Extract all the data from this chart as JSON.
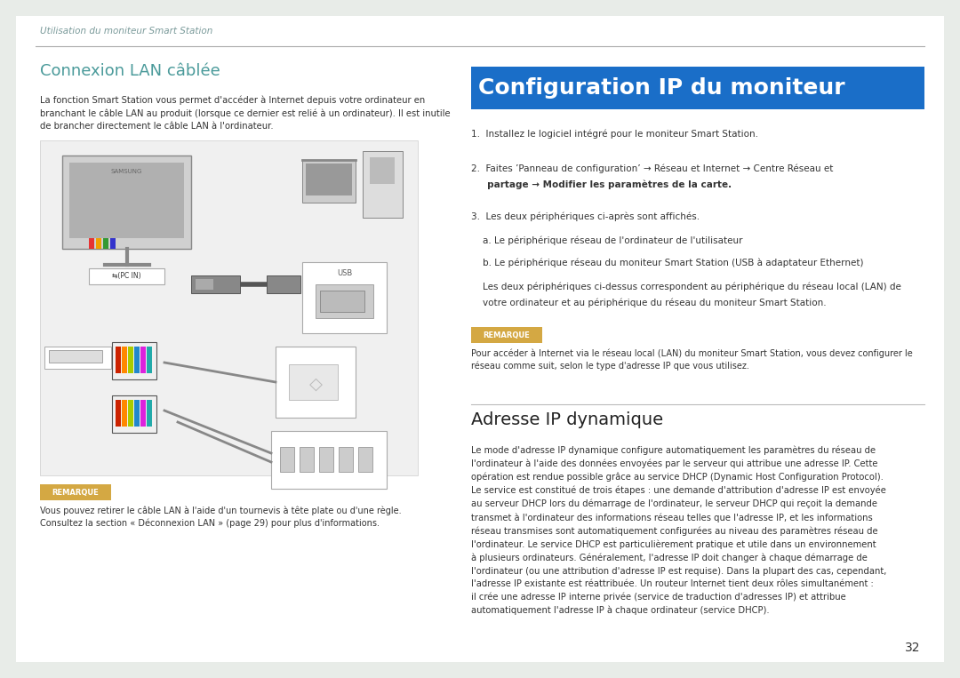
{
  "bg_color": "#e8ece8",
  "page_bg": "#ffffff",
  "header_text": "Utilisation du moniteur Smart Station",
  "header_color": "#7a9a9a",
  "header_line_color": "#aaaaaa",
  "title_left": "Connexion LAN câblée",
  "title_left_color": "#4a9a9a",
  "title_right": "Configuration IP du moniteur",
  "title_right_bg": "#1a6ec8",
  "title_right_color": "#ffffff",
  "remarque_bg": "#d4a843",
  "remarque_text_color": "#ffffff",
  "remarque_label": "REMARQUE",
  "page_number": "32",
  "body_text_color": "#333333"
}
